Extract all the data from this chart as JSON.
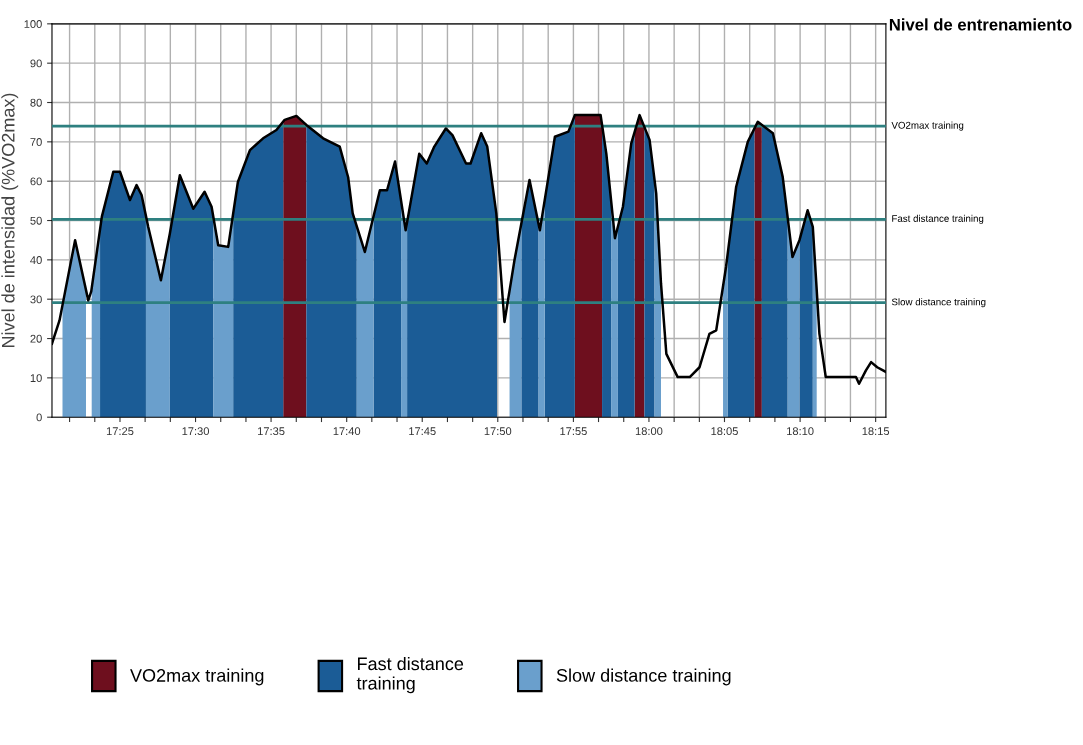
{
  "chart_data": {
    "type": "area",
    "title": "Nivel de entrenamiento",
    "ylabel": "Nivel de intensidad (%VO2max)",
    "xlim": [
      17.3417,
      18.2613
    ],
    "xticks": [
      {
        "value": 17.3611,
        "label": null
      },
      {
        "value": 17.3889,
        "label": null
      },
      {
        "value": 17.4167,
        "label": "17:25"
      },
      {
        "value": 17.4444,
        "label": null
      },
      {
        "value": 17.4722,
        "label": null
      },
      {
        "value": 17.5,
        "label": "17:30"
      },
      {
        "value": 17.5278,
        "label": null
      },
      {
        "value": 17.5556,
        "label": null
      },
      {
        "value": 17.5833,
        "label": "17:35"
      },
      {
        "value": 17.6111,
        "label": null
      },
      {
        "value": 17.6389,
        "label": null
      },
      {
        "value": 17.6667,
        "label": "17:40"
      },
      {
        "value": 17.6944,
        "label": null
      },
      {
        "value": 17.7222,
        "label": null
      },
      {
        "value": 17.75,
        "label": "17:45"
      },
      {
        "value": 17.7778,
        "label": null
      },
      {
        "value": 17.8056,
        "label": null
      },
      {
        "value": 17.8333,
        "label": "17:50"
      },
      {
        "value": 17.8611,
        "label": null
      },
      {
        "value": 17.8889,
        "label": null
      },
      {
        "value": 17.9167,
        "label": "17:55"
      },
      {
        "value": 17.9444,
        "label": null
      },
      {
        "value": 17.9722,
        "label": null
      },
      {
        "value": 18.0,
        "label": "18:00"
      },
      {
        "value": 18.0278,
        "label": null
      },
      {
        "value": 18.0556,
        "label": null
      },
      {
        "value": 18.0833,
        "label": "18:05"
      },
      {
        "value": 18.1111,
        "label": null
      },
      {
        "value": 18.1389,
        "label": null
      },
      {
        "value": 18.1667,
        "label": "18:10"
      },
      {
        "value": 18.1944,
        "label": null
      },
      {
        "value": 18.2222,
        "label": null
      },
      {
        "value": 18.25,
        "label": "18:15"
      }
    ],
    "ylim": [
      0,
      100
    ],
    "yticks": [
      0,
      10,
      20,
      30,
      40,
      50,
      60,
      70,
      80,
      90,
      100
    ],
    "grid": true,
    "legend": "bottom",
    "ref_lines": [
      {
        "axis": "y",
        "value": 74,
        "label": "VO2max training",
        "color": "#2e8080"
      },
      {
        "axis": "y",
        "value": 50.3,
        "label": "Fast distance training",
        "color": "#2e8080"
      },
      {
        "axis": "y",
        "value": 29.1,
        "label": "Slow distance training",
        "color": "#2e8080"
      }
    ],
    "series": [
      {
        "name": "VO2max training",
        "color": "#6e0f1e",
        "x": [
          17.5967,
          17.5983,
          17.6112,
          17.6222,
          null,
          17.9183,
          17.9467,
          17.9483,
          null,
          17.9842,
          17.9897,
          17.995,
          null,
          18.1163,
          18.12,
          18.1245
        ],
        "values": [
          75.1,
          75.6,
          76.6,
          74.3,
          null,
          76.8,
          76.8,
          74.2,
          null,
          72.5,
          76.8,
          73.7,
          null,
          73.4,
          75.1,
          74.3
        ]
      },
      {
        "name": "Fast distance training",
        "color": "#1b5c96",
        "x": [
          17.3947,
          17.3967,
          17.4093,
          17.4167,
          17.4277,
          17.435,
          17.4405,
          17.4453,
          null,
          17.4717,
          17.4827,
          17.4975,
          17.51,
          17.5177,
          17.5195,
          null,
          17.5415,
          17.5467,
          17.56,
          17.5745,
          17.5892,
          17.5967,
          null,
          17.6222,
          17.6407,
          17.659,
          17.6683,
          17.6733,
          17.6778,
          null,
          17.6963,
          17.7033,
          17.7112,
          17.72,
          17.7267,
          null,
          17.7333,
          17.7467,
          17.755,
          17.7633,
          17.776,
          17.7833,
          17.7983,
          17.8033,
          17.815,
          17.8217,
          17.8317,
          17.8325,
          null,
          17.8593,
          17.8683,
          17.8783,
          null,
          17.885,
          17.8963,
          17.9112,
          17.9183,
          null,
          17.9483,
          17.953,
          17.9583,
          null,
          17.9658,
          17.9713,
          17.9805,
          17.9842,
          null,
          17.995,
          18.0007,
          18.0062,
          null,
          18.0867,
          18.0962,
          18.109,
          18.1163,
          null,
          18.1245,
          18.1367,
          18.1475,
          18.153,
          null,
          18.166,
          18.175,
          18.1807
        ],
        "values": [
          47.8,
          51,
          62.4,
          62.4,
          55.2,
          59,
          56.5,
          51.2,
          null,
          46.7,
          61.5,
          53,
          57.3,
          53.5,
          51.0,
          null,
          51.8,
          59.8,
          67.9,
          70.9,
          73,
          75.1,
          null,
          74.3,
          70.9,
          68.8,
          61,
          51.8,
          48.5,
          null,
          51.1,
          57.7,
          57.7,
          65,
          55.0,
          null,
          49.7,
          67,
          64.5,
          68.8,
          73.4,
          71.7,
          64.5,
          64.5,
          72.2,
          68.8,
          51.8,
          49.2,
          null,
          49.3,
          60.3,
          49.0,
          null,
          55.1,
          71.3,
          72.6,
          76.8,
          null,
          74.2,
          67,
          54.9,
          null,
          48.5,
          53.5,
          69.6,
          72.5,
          null,
          73.7,
          70.5,
          60.3,
          null,
          41.2,
          58.6,
          70,
          73.4,
          null,
          74.3,
          72.2,
          61.1,
          50.7,
          null,
          45,
          52.6,
          48.4
        ]
      },
      {
        "name": "Slow distance training",
        "color": "#6a9fcc",
        "x": [
          17.3533,
          17.3543,
          17.3672,
          17.3792,
          null,
          17.3855,
          17.3947,
          null,
          17.4453,
          17.4478,
          17.4618,
          17.4717,
          null,
          17.5195,
          17.525,
          17.536,
          17.5415,
          null,
          17.6778,
          17.6867,
          17.6963,
          null,
          17.7267,
          17.7317,
          17.7333,
          null,
          17.8463,
          17.8517,
          17.8593,
          null,
          17.8783,
          17.8797,
          17.885,
          null,
          17.9583,
          17.9625,
          17.9658,
          null,
          18.0062,
          18.008,
          18.0133,
          null,
          18.0817,
          18.0867,
          null,
          18.153,
          18.1583,
          18.166,
          null,
          18.1807,
          18.185
        ],
        "values": [
          28.5,
          29.7,
          45,
          32.3,
          null,
          32.8,
          47.8,
          null,
          51.2,
          48.4,
          34.8,
          46.7,
          null,
          51.0,
          43.7,
          43.3,
          51.8,
          null,
          48.5,
          42,
          51.1,
          null,
          55.0,
          47.5,
          49.7,
          null,
          32.3,
          39.9,
          49.3,
          null,
          49.0,
          47.5,
          55.1,
          null,
          54.9,
          45.5,
          48.5,
          null,
          60.3,
          56.9,
          34,
          null,
          33.2,
          41.2,
          null,
          50.7,
          40.7,
          45,
          null,
          48.4,
          32.3
        ]
      },
      {
        "type": "line",
        "color": "#000000",
        "x": [
          17.3417,
          17.35,
          17.3543,
          17.3672,
          17.3817,
          17.385,
          17.3967,
          17.4093,
          17.4167,
          17.4277,
          17.435,
          17.4405,
          17.4478,
          17.4618,
          17.4717,
          17.4827,
          17.4975,
          17.51,
          17.5177,
          17.525,
          17.536,
          17.5467,
          17.56,
          17.5745,
          17.5892,
          17.5983,
          17.6112,
          17.6222,
          17.6407,
          17.659,
          17.6683,
          17.6733,
          17.6867,
          17.7033,
          17.7112,
          17.72,
          17.7317,
          17.7467,
          17.755,
          17.7633,
          17.776,
          17.7833,
          17.7983,
          17.8033,
          17.815,
          17.8217,
          17.8317,
          17.8407,
          17.8517,
          17.8683,
          17.8797,
          17.8963,
          17.9112,
          17.9183,
          17.9467,
          17.953,
          17.9625,
          17.9713,
          17.9805,
          17.9897,
          18.0007,
          18.008,
          18.0133,
          18.0192,
          18.0317,
          18.045,
          18.0558,
          18.0667,
          18.0742,
          18.085,
          18.0962,
          18.109,
          18.12,
          18.1367,
          18.1475,
          18.1583,
          18.166,
          18.175,
          18.1807,
          18.188,
          18.195,
          18.2283,
          18.2317,
          18.2393,
          18.245,
          18.2517,
          18.2613
        ],
        "values": [
          18.7,
          24.6,
          29.7,
          45,
          29.7,
          32,
          51,
          62.4,
          62.4,
          55.2,
          59,
          56.5,
          48.4,
          34.8,
          46.7,
          61.5,
          53,
          57.3,
          53.5,
          43.7,
          43.3,
          59.8,
          67.9,
          70.9,
          73,
          75.6,
          76.6,
          74.3,
          70.9,
          68.8,
          61,
          51.8,
          42,
          57.7,
          57.7,
          65,
          47.5,
          67,
          64.5,
          68.8,
          73.4,
          71.7,
          64.5,
          64.5,
          72.2,
          68.8,
          51.8,
          24.2,
          39.9,
          60.3,
          47.5,
          71.3,
          72.6,
          76.8,
          76.8,
          67,
          45.5,
          53.5,
          69.6,
          76.8,
          70.5,
          56.9,
          34,
          16.1,
          10.2,
          10.2,
          12.7,
          21.2,
          22.1,
          38.2,
          58.6,
          70,
          75.1,
          72.2,
          61.1,
          40.7,
          45,
          52.6,
          48.4,
          21.2,
          10.2,
          10.2,
          8.5,
          11.9,
          14,
          12.7,
          11.5
        ]
      }
    ]
  }
}
